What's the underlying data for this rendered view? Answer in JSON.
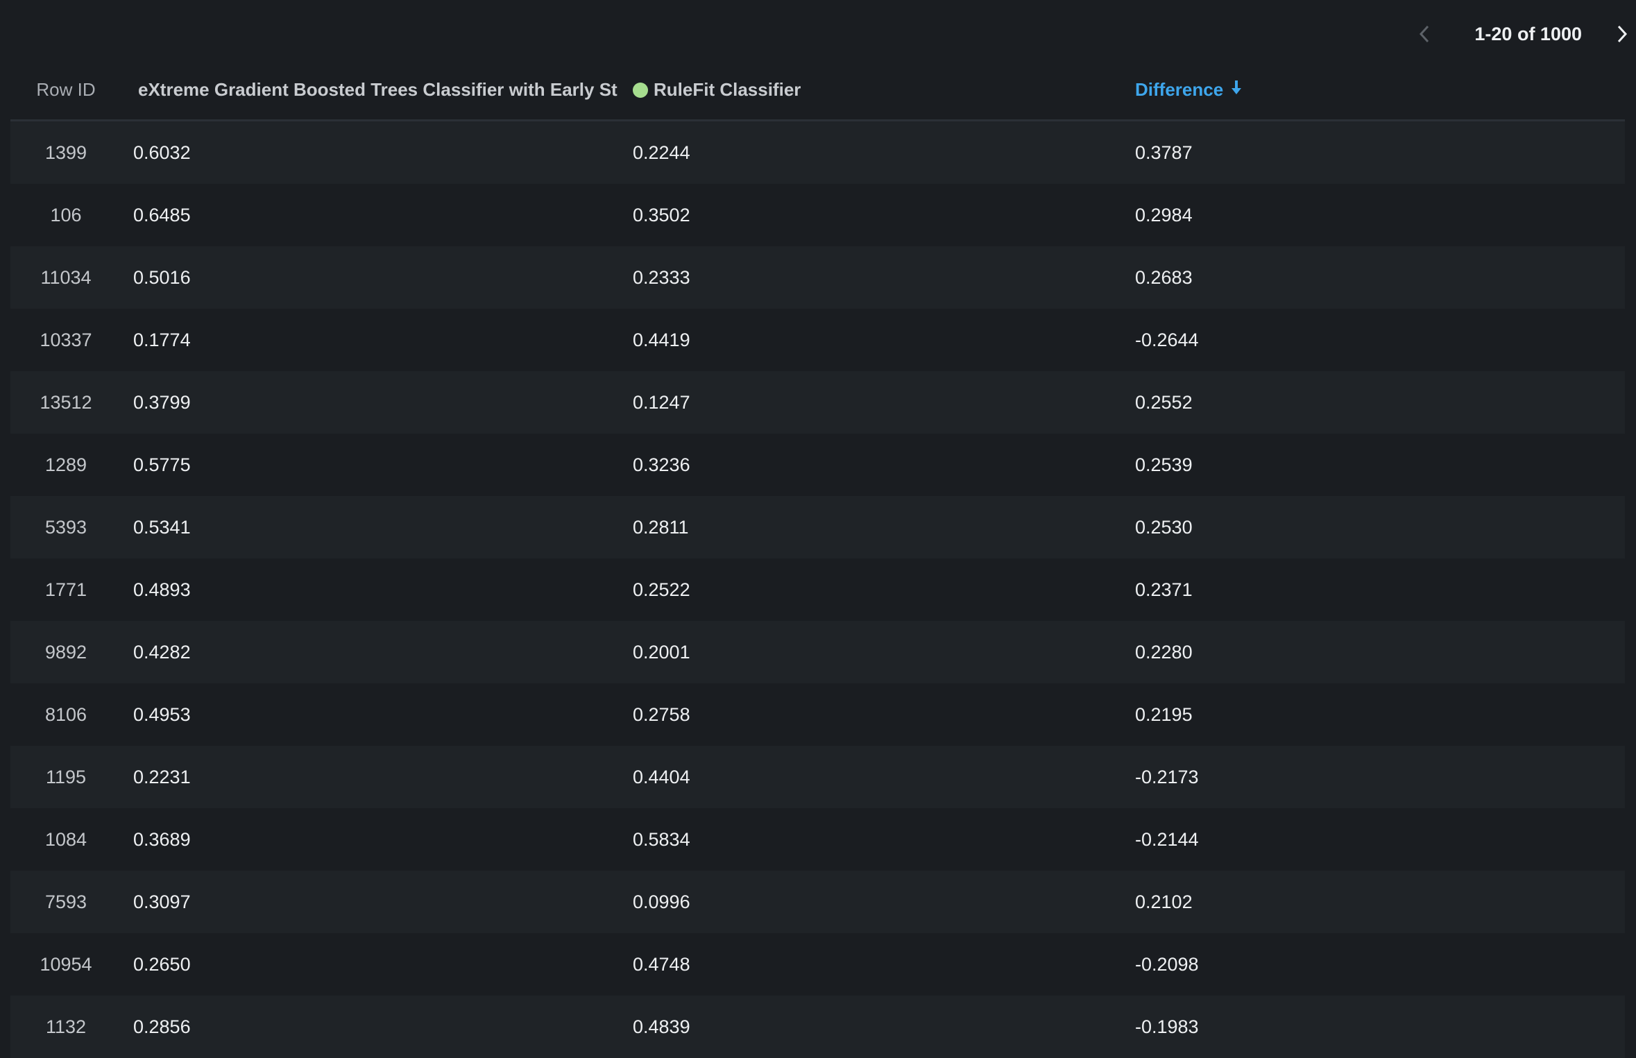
{
  "pagination": {
    "range_label": "1-20 of 1000",
    "prev_icon": "chevron-left-icon",
    "next_icon": "chevron-right-icon"
  },
  "colors": {
    "background": "#1a1d21",
    "stripe": "#1f2327",
    "accent": "#3ea6ec",
    "rulefit_dot": "#a6dd8f"
  },
  "columns": {
    "row_id": "Row ID",
    "model_a": "eXtreme Gradient Boosted Trees Classifier with Early St",
    "model_b": "RuleFit Classifier",
    "difference": "Difference",
    "sort_icon": "arrow-down-icon",
    "sort_direction": "descending"
  },
  "rows": [
    [
      "1399",
      "0.6032",
      "0.2244",
      "0.3787"
    ],
    [
      "106",
      "0.6485",
      "0.3502",
      "0.2984"
    ],
    [
      "11034",
      "0.5016",
      "0.2333",
      "0.2683"
    ],
    [
      "10337",
      "0.1774",
      "0.4419",
      "-0.2644"
    ],
    [
      "13512",
      "0.3799",
      "0.1247",
      "0.2552"
    ],
    [
      "1289",
      "0.5775",
      "0.3236",
      "0.2539"
    ],
    [
      "5393",
      "0.5341",
      "0.2811",
      "0.2530"
    ],
    [
      "1771",
      "0.4893",
      "0.2522",
      "0.2371"
    ],
    [
      "9892",
      "0.4282",
      "0.2001",
      "0.2280"
    ],
    [
      "8106",
      "0.4953",
      "0.2758",
      "0.2195"
    ],
    [
      "1195",
      "0.2231",
      "0.4404",
      "-0.2173"
    ],
    [
      "1084",
      "0.3689",
      "0.5834",
      "-0.2144"
    ],
    [
      "7593",
      "0.3097",
      "0.0996",
      "0.2102"
    ],
    [
      "10954",
      "0.2650",
      "0.4748",
      "-0.2098"
    ],
    [
      "1132",
      "0.2856",
      "0.4839",
      "-0.1983"
    ]
  ]
}
